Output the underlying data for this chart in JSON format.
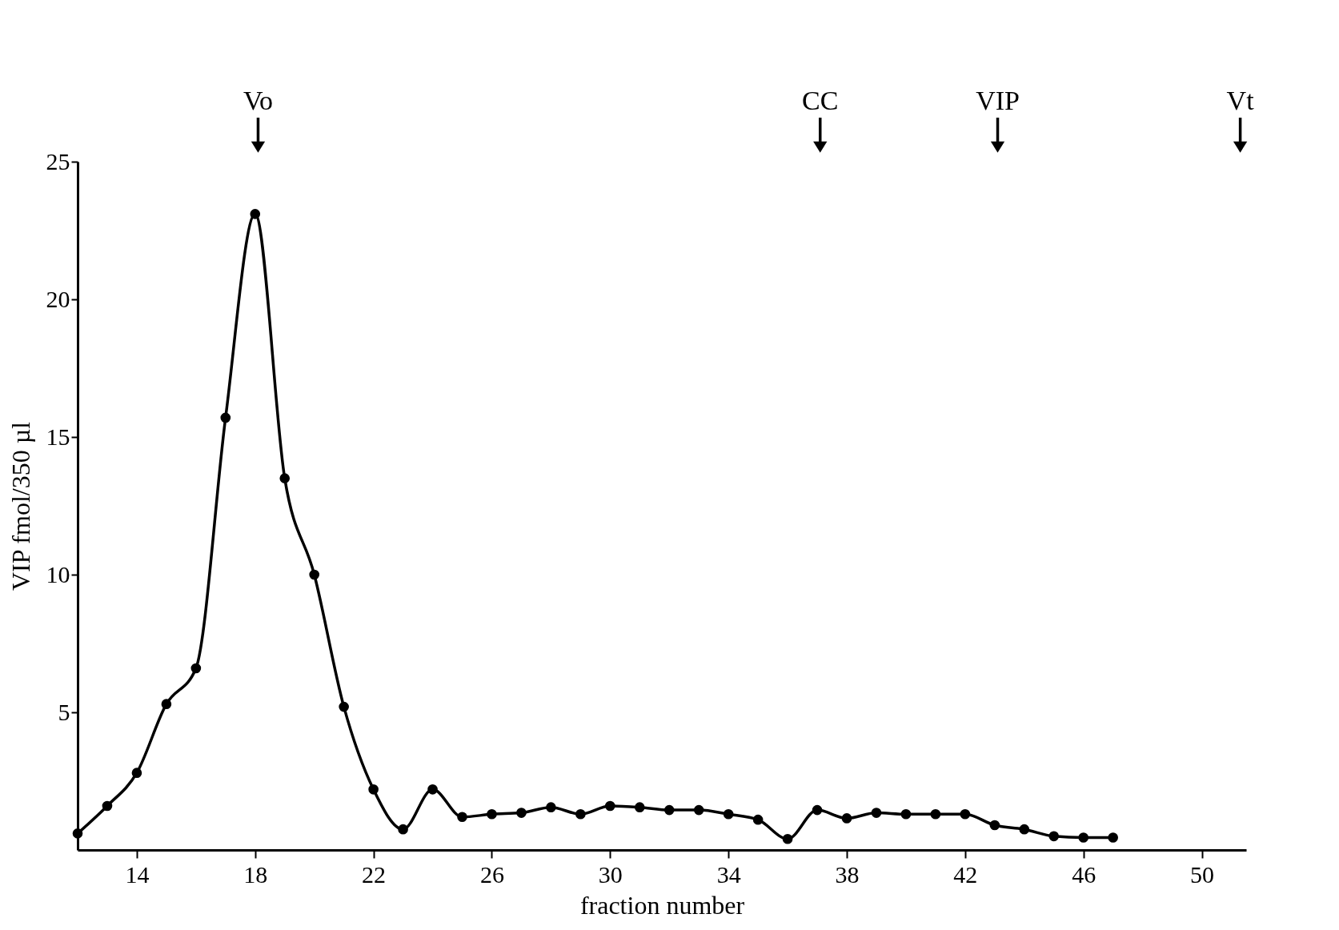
{
  "chart_data": {
    "type": "line",
    "xlabel": "fraction number",
    "ylabel": "VIP fmol/350 µl",
    "x": [
      12,
      13,
      14,
      15,
      16,
      17,
      18,
      19,
      20,
      21,
      22,
      23,
      24,
      25,
      26,
      27,
      28,
      29,
      30,
      31,
      32,
      33,
      34,
      35,
      36,
      37,
      38,
      39,
      40,
      41,
      42,
      43,
      44,
      45,
      46,
      47
    ],
    "values": [
      0.6,
      1.6,
      2.8,
      5.3,
      6.6,
      15.7,
      23.1,
      13.5,
      10,
      5.2,
      2.2,
      0.75,
      2.2,
      1.2,
      1.3,
      1.35,
      1.55,
      1.3,
      1.6,
      1.55,
      1.45,
      1.45,
      1.3,
      1.1,
      0.4,
      1.45,
      1.15,
      1.35,
      1.3,
      1.3,
      1.3,
      0.9,
      0.75,
      0.5,
      0.45,
      0.45
    ],
    "color": "#000000",
    "marker": "circle",
    "line_style": "solid",
    "xlim": [
      12,
      51.5
    ],
    "ylim": [
      0,
      25
    ],
    "xticks": [
      14,
      18,
      22,
      26,
      30,
      34,
      38,
      42,
      46,
      50
    ],
    "yticks": [
      5,
      10,
      15,
      20,
      25
    ],
    "grid": false,
    "ref_lines": [
      {
        "axis": "x",
        "value": 18.1,
        "label": "Vo"
      },
      {
        "axis": "x",
        "value": 37.1,
        "label": "CC"
      },
      {
        "axis": "x",
        "value": 43.1,
        "label": "VIP"
      },
      {
        "axis": "x",
        "value": 51.3,
        "label": "Vt"
      }
    ]
  }
}
